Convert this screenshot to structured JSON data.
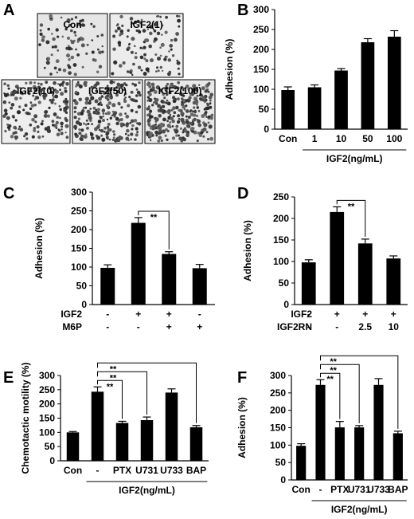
{
  "panel_A": {
    "letter": "A",
    "images": [
      {
        "label": "Con",
        "dots": 90
      },
      {
        "label": "IGF2(1)",
        "dots": 110
      },
      {
        "label": "IGF2(10)",
        "dots": 170
      },
      {
        "label": "IGF2(50)",
        "dots": 230
      },
      {
        "label": "IGF2(100)",
        "dots": 300
      }
    ]
  },
  "chart_data": [
    {
      "id": "B",
      "letter": "B",
      "type": "bar",
      "ylabel": "Adhesion (%)",
      "ylim": [
        0,
        300
      ],
      "yticks": [
        0,
        50,
        100,
        150,
        200,
        250,
        300
      ],
      "categories": [
        "Con",
        "1",
        "10",
        "50",
        "100"
      ],
      "values": [
        98,
        105,
        147,
        218,
        232
      ],
      "errors": [
        8,
        6,
        5,
        9,
        15
      ],
      "group_label": "IGF2(ng/mL)",
      "significance": []
    },
    {
      "id": "C",
      "letter": "C",
      "type": "bar",
      "ylabel": "Adhesion (%)",
      "ylim": [
        0,
        300
      ],
      "yticks": [
        0,
        50,
        100,
        150,
        200,
        250,
        300
      ],
      "categories": [
        "",
        "",
        "",
        ""
      ],
      "values": [
        98,
        218,
        135,
        97
      ],
      "errors": [
        8,
        14,
        6,
        10
      ],
      "row_labels": [
        {
          "name": "IGF2",
          "values": [
            "-",
            "+",
            "+",
            "-"
          ]
        },
        {
          "name": "M6P",
          "values": [
            "-",
            "-",
            "+",
            "+"
          ]
        }
      ],
      "significance": [
        {
          "from": 1,
          "to": 2,
          "label": "**"
        }
      ]
    },
    {
      "id": "D",
      "letter": "D",
      "type": "bar",
      "ylabel": "Adhesion (%)",
      "ylim": [
        0,
        250
      ],
      "yticks": [
        0,
        50,
        100,
        150,
        200,
        250
      ],
      "categories": [
        "",
        "",
        "",
        ""
      ],
      "values": [
        98,
        215,
        142,
        107
      ],
      "errors": [
        6,
        12,
        10,
        6
      ],
      "row_labels": [
        {
          "name": "IGF2",
          "values": [
            "-",
            "+",
            "+",
            "+"
          ]
        },
        {
          "name": "IGF2RN",
          "values": [
            "-",
            "-",
            "2.5",
            "10"
          ]
        }
      ],
      "significance": [
        {
          "from": 1,
          "to": 2,
          "label": "**"
        }
      ]
    },
    {
      "id": "E",
      "letter": "E",
      "type": "bar",
      "ylabel": "Chemotactic motility (%)",
      "ylim": [
        0,
        300
      ],
      "yticks": [
        0,
        50,
        100,
        150,
        200,
        250,
        300
      ],
      "categories": [
        "Con",
        "-",
        "PTX",
        "U731",
        "U733",
        "BAP"
      ],
      "values": [
        100,
        243,
        133,
        143,
        240,
        118
      ],
      "errors": [
        3,
        17,
        6,
        11,
        13,
        6
      ],
      "group_label": "IGF2(ng/mL)",
      "significance": [
        {
          "from": 1,
          "to": 2,
          "label": "**"
        },
        {
          "from": 1,
          "to": 3,
          "label": "**"
        },
        {
          "from": 1,
          "to": 5,
          "label": "**"
        }
      ]
    },
    {
      "id": "F",
      "letter": "F",
      "type": "bar",
      "ylabel": "Adhesion (%)",
      "ylim": [
        0,
        300
      ],
      "yticks": [
        0,
        50,
        100,
        150,
        200,
        250,
        300
      ],
      "categories": [
        "Con",
        "-",
        "PTX",
        "U731",
        "U733",
        "BAP"
      ],
      "values": [
        98,
        273,
        151,
        151,
        273,
        134
      ],
      "errors": [
        6,
        15,
        17,
        5,
        18,
        6
      ],
      "group_label": "IGF2(ng/mL)",
      "significance": [
        {
          "from": 1,
          "to": 2,
          "label": "**"
        },
        {
          "from": 1,
          "to": 3,
          "label": "**"
        },
        {
          "from": 1,
          "to": 5,
          "label": "**"
        }
      ]
    }
  ]
}
